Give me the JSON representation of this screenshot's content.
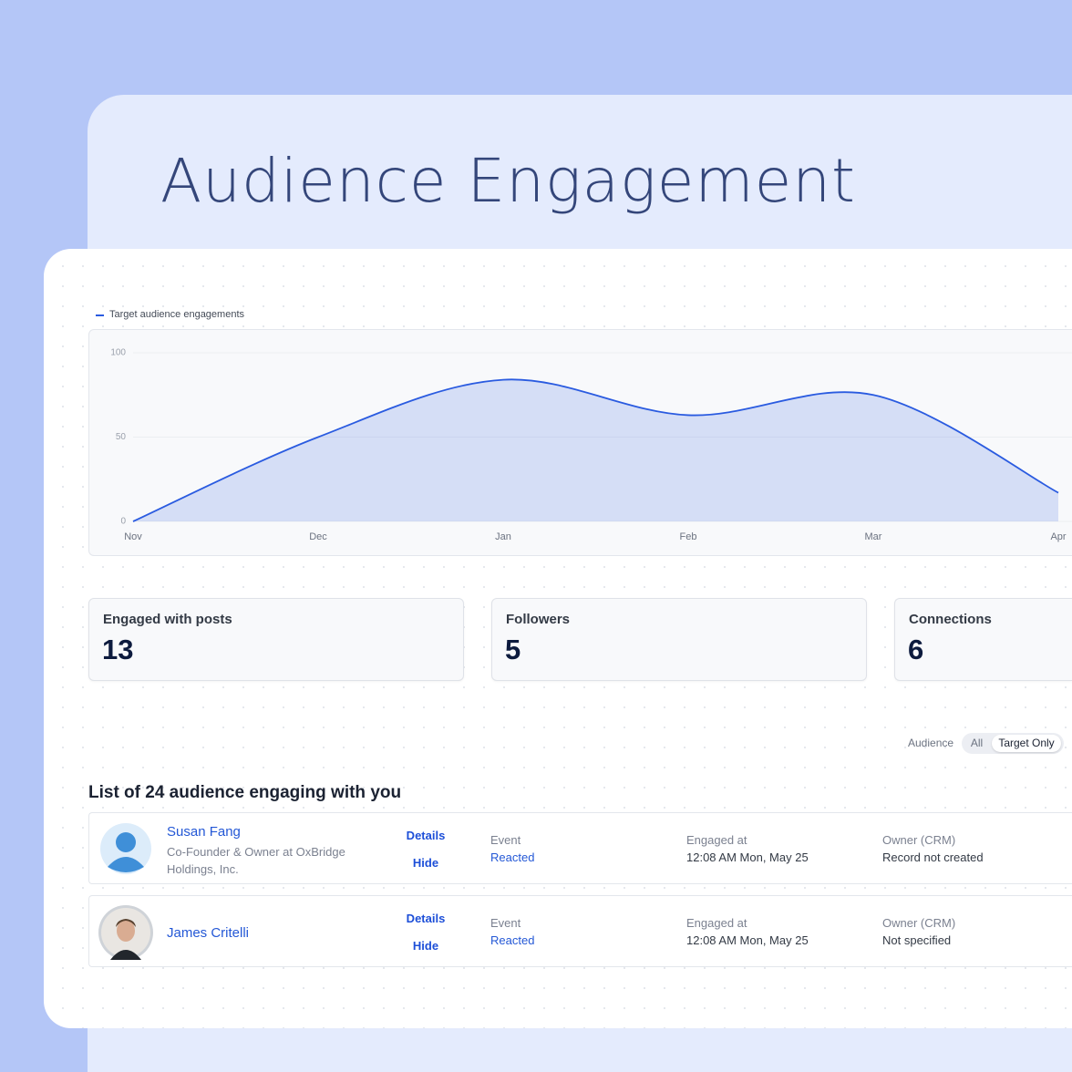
{
  "header": {
    "title": "Audience Engagement"
  },
  "chart_data": {
    "type": "line",
    "categories": [
      "Nov",
      "Dec",
      "Jan",
      "Feb",
      "Mar",
      "Apr"
    ],
    "series": [
      {
        "name": "Target audience engagements",
        "color": "#2a5be0",
        "values": [
          0,
          50,
          84,
          63,
          75,
          17
        ]
      }
    ],
    "ylim": [
      0,
      100
    ],
    "yticks": [
      0,
      50,
      100
    ],
    "grid": true,
    "area": true,
    "legend": "top-left"
  },
  "stats": [
    {
      "label": "Engaged with posts",
      "value": 13
    },
    {
      "label": "Followers",
      "value": 5
    },
    {
      "label": "Connections",
      "value": 6
    }
  ],
  "audience_filter": {
    "label": "Audience",
    "options": [
      "All",
      "Target Only"
    ],
    "selected": 1
  },
  "list": {
    "title": "List of 24 audience engaging with you",
    "rows": [
      {
        "name": "Susan Fang",
        "headline": "Co-Founder & Owner at OxBridge Holdings, Inc.",
        "actions": [
          "Details",
          "Hide"
        ],
        "event_label": "Event",
        "event": "Reacted",
        "engaged_label": "Engaged at",
        "engaged_at": "12:08 AM Mon, May 25",
        "owner_label": "Owner (CRM)",
        "owner": "Record not created"
      },
      {
        "name": "James Critelli",
        "actions": [
          "Details",
          "Hide"
        ],
        "event_label": "Event",
        "event": "Reacted",
        "engaged_label": "Engaged at",
        "engaged_at": "12:08 AM Mon, May 25",
        "owner_label": "Owner (CRM)",
        "owner": "Not specified"
      }
    ]
  }
}
